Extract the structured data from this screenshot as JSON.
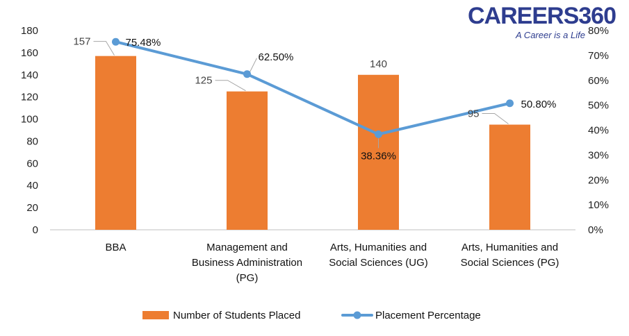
{
  "logo": {
    "name": "CAREERS360",
    "tagline": "A Career is a Life"
  },
  "chart_data": {
    "type": "bar",
    "categories": [
      [
        "BBA"
      ],
      [
        "Management and",
        "Business Administration",
        "(PG)"
      ],
      [
        "Arts, Humanities and",
        "Social Sciences (UG)"
      ],
      [
        "Arts, Humanities and",
        "Social Sciences (PG)"
      ]
    ],
    "series": [
      {
        "name": "Number of Students Placed",
        "type": "bar",
        "axis": "left",
        "values": [
          157,
          125,
          140,
          95
        ],
        "labels": [
          "157",
          "125",
          "140",
          "95"
        ],
        "color": "#ed7d31"
      },
      {
        "name": "Placement Percentage",
        "type": "line",
        "axis": "right",
        "values": [
          75.48,
          62.5,
          38.36,
          50.8
        ],
        "labels": [
          "75.48%",
          "62.50%",
          "38.36%",
          "50.80%"
        ],
        "color": "#5b9bd5"
      }
    ],
    "y_left": {
      "min": 0,
      "max": 180,
      "step": 20,
      "ticks": [
        "0",
        "20",
        "40",
        "60",
        "80",
        "100",
        "120",
        "140",
        "160",
        "180"
      ]
    },
    "y_right": {
      "min": 0,
      "max": 80,
      "step": 10,
      "ticks": [
        "0%",
        "10%",
        "20%",
        "30%",
        "40%",
        "50%",
        "60%",
        "70%",
        "80%"
      ]
    },
    "grid": false,
    "legend": "bottom"
  }
}
